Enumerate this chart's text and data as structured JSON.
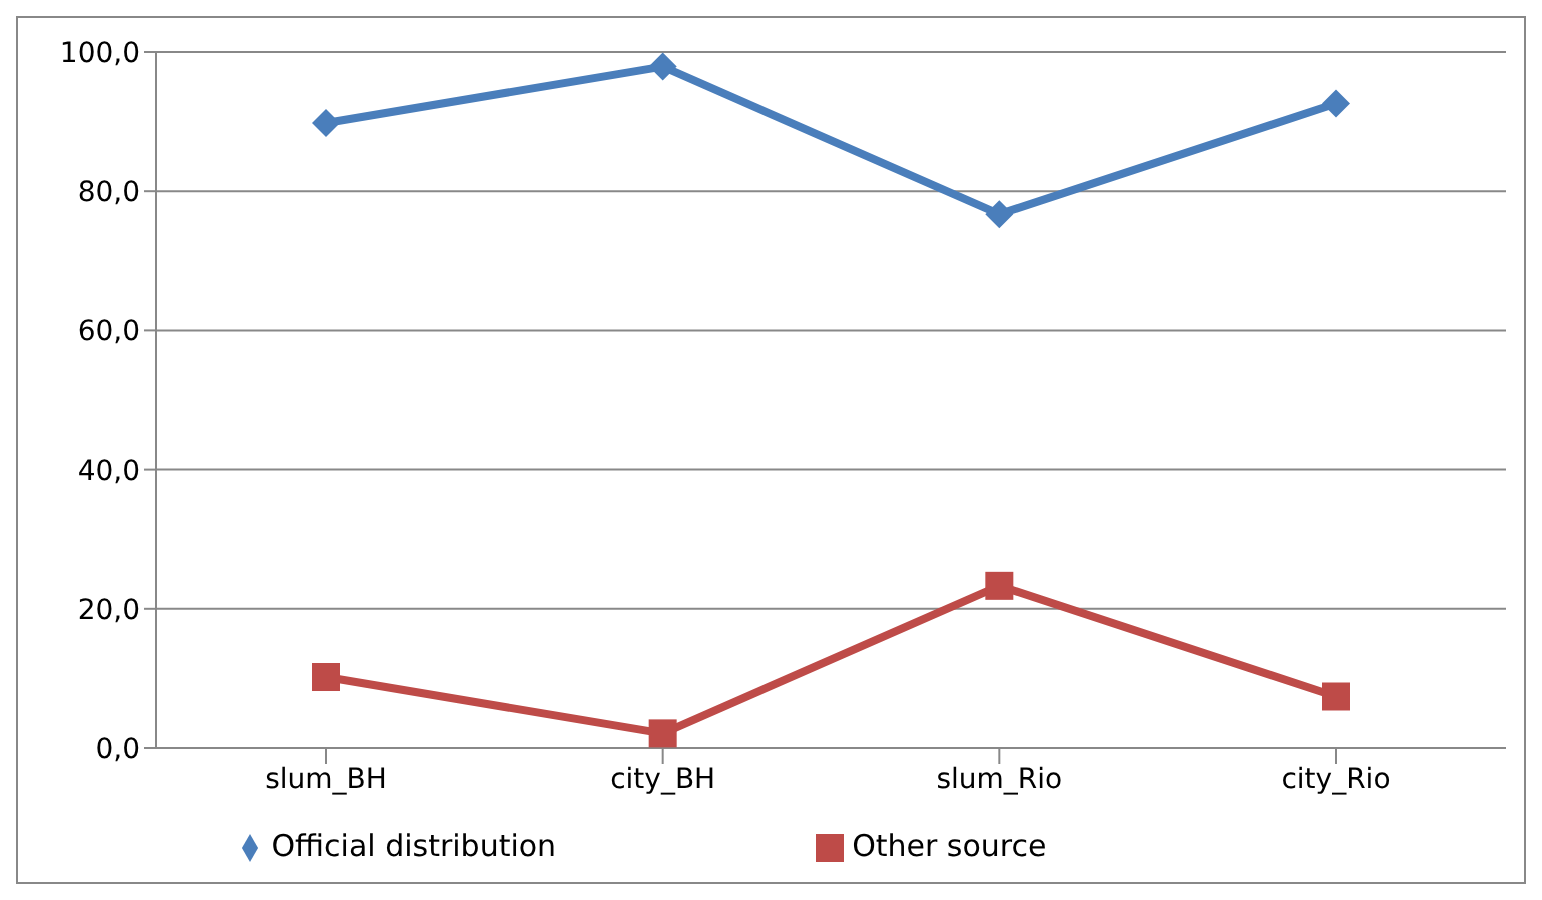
{
  "chart_data": {
    "type": "line",
    "categories": [
      "slum_BH",
      "city_BH",
      "slum_Rio",
      "city_Rio"
    ],
    "series": [
      {
        "name": "Official distribution",
        "color": "#4a7ebb",
        "marker": "diamond",
        "values": [
          89.8,
          97.9,
          76.7,
          92.6
        ]
      },
      {
        "name": "Other source",
        "color": "#be4b48",
        "marker": "square",
        "values": [
          10.2,
          2.1,
          23.3,
          7.4
        ]
      }
    ],
    "ylim": [
      0,
      100
    ],
    "yticks": [
      {
        "value": 0,
        "label": "0,0"
      },
      {
        "value": 20,
        "label": "20,0"
      },
      {
        "value": 40,
        "label": "40,0"
      },
      {
        "value": 60,
        "label": "60,0"
      },
      {
        "value": 80,
        "label": "80,0"
      },
      {
        "value": 100,
        "label": "100,0"
      }
    ],
    "grid": "y",
    "legend": "bottom",
    "line_style": "solid"
  }
}
